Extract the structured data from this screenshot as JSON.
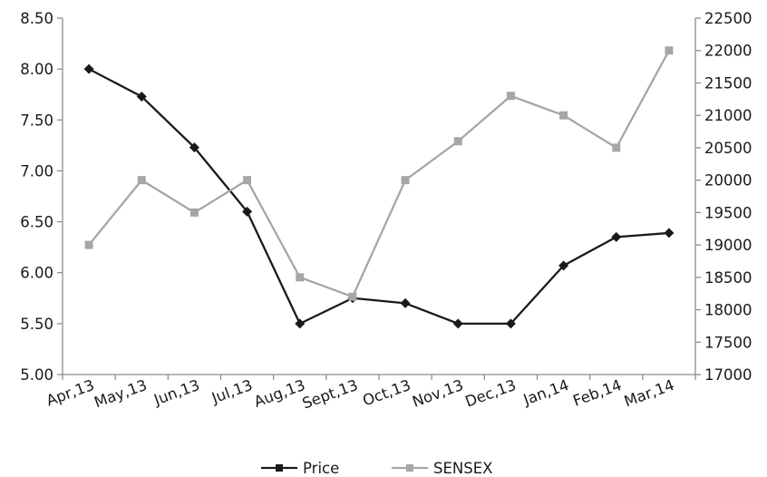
{
  "chart_data": {
    "type": "line",
    "categories": [
      "Apr,13",
      "May,13",
      "Jun,13",
      "Jul,13",
      "Aug,13",
      "Sept,13",
      "Oct,13",
      "Nov,13",
      "Dec,13",
      "Jan,14",
      "Feb,14",
      "Mar,14"
    ],
    "series": [
      {
        "name": "Price",
        "axis": "left",
        "color": "#1a1a1a",
        "marker": "diamond",
        "values": [
          8.0,
          7.73,
          7.23,
          6.6,
          5.5,
          5.75,
          5.7,
          5.5,
          5.5,
          6.07,
          6.35,
          6.39
        ]
      },
      {
        "name": "SENSEX",
        "axis": "right",
        "color": "#a6a6a6",
        "marker": "square",
        "values": [
          19000,
          20000,
          19500,
          20000,
          18500,
          18200,
          20000,
          20600,
          21300,
          21000,
          20500,
          22000
        ]
      }
    ],
    "y_left": {
      "range": [
        5.0,
        8.5
      ],
      "ticks": [
        "5.00",
        "5.50",
        "6.00",
        "6.50",
        "7.00",
        "7.50",
        "8.00",
        "8.50"
      ]
    },
    "y_right": {
      "range": [
        17000,
        22500
      ],
      "ticks": [
        "17000",
        "17500",
        "18000",
        "18500",
        "19000",
        "19500",
        "20000",
        "20500",
        "21000",
        "21500",
        "22000",
        "22500"
      ]
    },
    "title": "",
    "xlabel": "",
    "ylabel": "",
    "grid": false,
    "legend_position": "bottom"
  }
}
